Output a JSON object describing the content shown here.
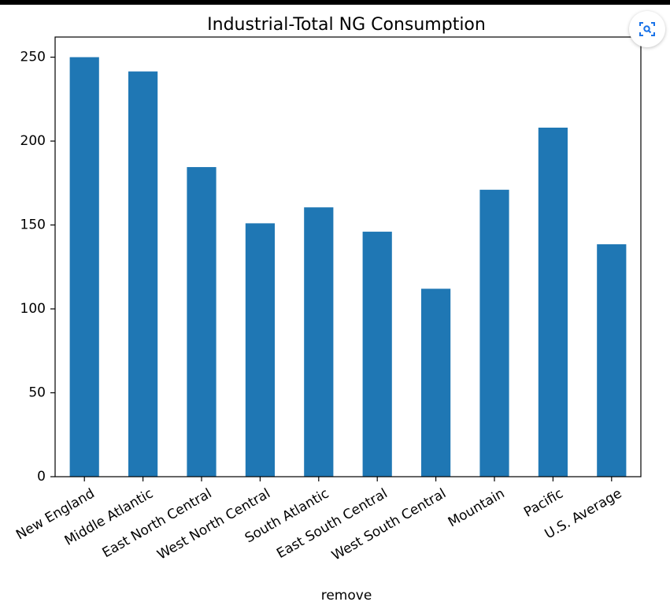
{
  "chart_data": {
    "type": "bar",
    "title": "Industrial-Total NG Consumption",
    "xlabel": "remove",
    "ylabel": "",
    "categories": [
      "New England",
      "Middle Atlantic",
      "East North Central",
      "West North Central",
      "South Atlantic",
      "East South Central",
      "West South Central",
      "Mountain",
      "Pacific",
      "U.S. Average"
    ],
    "values": [
      250,
      241.5,
      184.5,
      151,
      160.5,
      146,
      112,
      171,
      208,
      138.5
    ],
    "ylim": [
      0,
      262
    ],
    "yticks": [
      0,
      50,
      100,
      150,
      200,
      250
    ],
    "grid": false,
    "legend": "none",
    "bar_color": "#1f77b4"
  },
  "lens_button": {
    "icon": "image-search-icon"
  }
}
